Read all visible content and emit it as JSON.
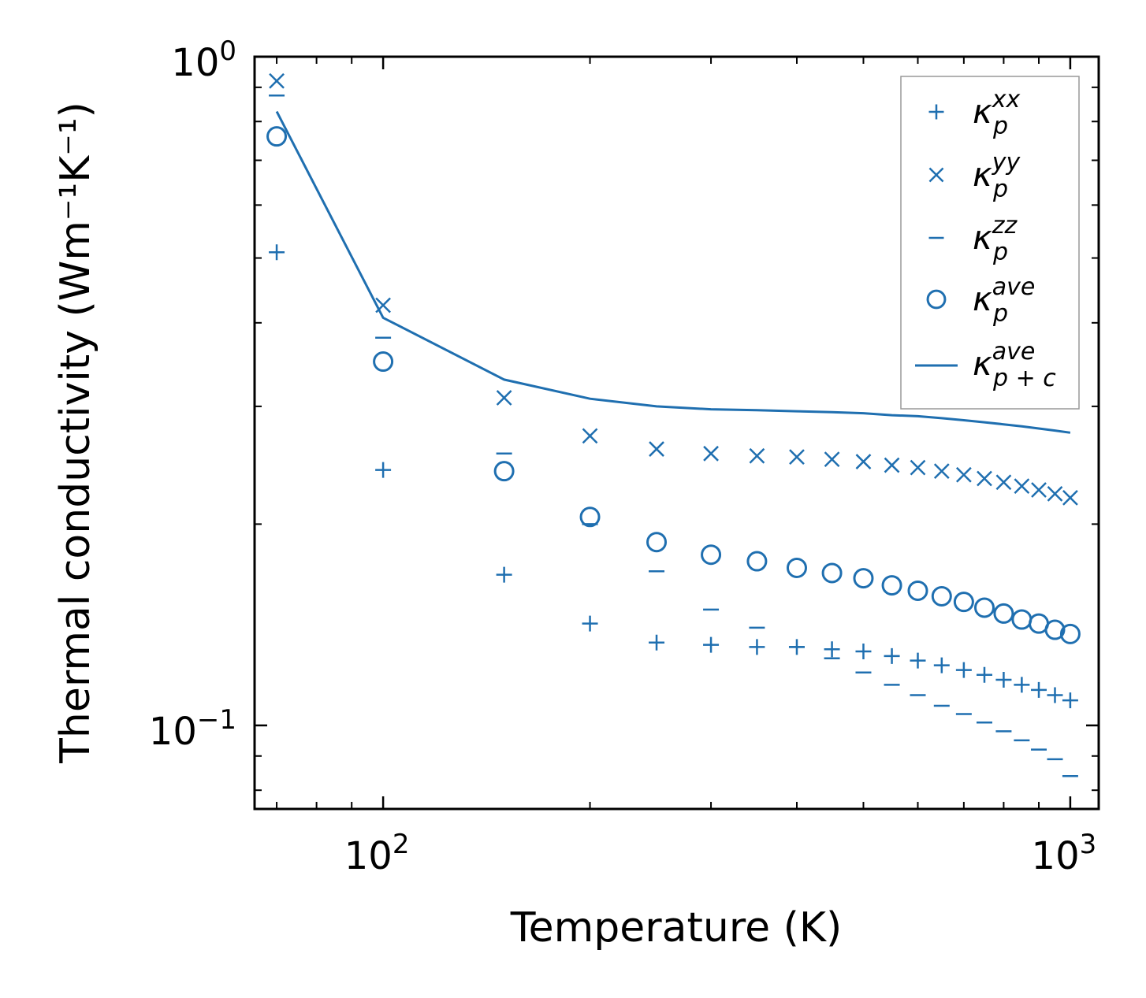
{
  "chart_data": {
    "type": "scatter",
    "xscale": "log",
    "yscale": "log",
    "xlim": [
      65,
      1100
    ],
    "ylim": [
      0.075,
      1.0
    ],
    "xlabel": "Temperature (K)",
    "ylabel": "Thermal conductivity (Wm⁻¹K⁻¹)",
    "x_ticks": [
      {
        "base": "10",
        "exp": "2"
      },
      {
        "base": "10",
        "exp": "3"
      }
    ],
    "y_ticks": [
      {
        "base": "10",
        "exp": "0"
      },
      {
        "base": "10",
        "exp": "−1"
      }
    ],
    "x": [
      70,
      100,
      150,
      200,
      250,
      300,
      350,
      400,
      450,
      500,
      550,
      600,
      650,
      700,
      750,
      800,
      850,
      900,
      950,
      1000
    ],
    "series": [
      {
        "name": "kappa_p_xx",
        "marker": "plus",
        "legend_base": "κ",
        "legend_sub": "p",
        "legend_sup": "xx",
        "values": [
          0.51,
          0.241,
          0.168,
          0.142,
          0.133,
          0.132,
          0.131,
          0.131,
          0.13,
          0.129,
          0.127,
          0.125,
          0.123,
          0.121,
          0.119,
          0.117,
          0.115,
          0.113,
          0.111,
          0.109
        ]
      },
      {
        "name": "kappa_p_yy",
        "marker": "x",
        "legend_base": "κ",
        "legend_sub": "p",
        "legend_sup": "yy",
        "values": [
          0.92,
          0.425,
          0.309,
          0.271,
          0.259,
          0.255,
          0.253,
          0.252,
          0.25,
          0.248,
          0.245,
          0.243,
          0.24,
          0.237,
          0.234,
          0.231,
          0.228,
          0.225,
          0.222,
          0.219
        ]
      },
      {
        "name": "kappa_p_zz",
        "marker": "dash",
        "legend_base": "κ",
        "legend_sub": "p",
        "legend_sup": "zz",
        "values": [
          0.875,
          0.38,
          0.255,
          0.2,
          0.17,
          0.149,
          0.14,
          0.131,
          0.126,
          0.12,
          0.115,
          0.111,
          0.107,
          0.104,
          0.101,
          0.098,
          0.095,
          0.092,
          0.089,
          0.084
        ]
      },
      {
        "name": "kappa_p_ave",
        "marker": "circle",
        "legend_base": "κ",
        "legend_sub": "p",
        "legend_sup": "ave",
        "values": [
          0.76,
          0.35,
          0.24,
          0.205,
          0.188,
          0.18,
          0.176,
          0.172,
          0.169,
          0.166,
          0.162,
          0.159,
          0.156,
          0.153,
          0.15,
          0.147,
          0.144,
          0.142,
          0.139,
          0.137
        ]
      },
      {
        "name": "kappa_pc_ave",
        "marker": "line",
        "legend_base": "κ",
        "legend_sub": "p + c",
        "legend_sup": "ave",
        "values": [
          0.828,
          0.407,
          0.329,
          0.308,
          0.3,
          0.297,
          0.296,
          0.295,
          0.294,
          0.293,
          0.291,
          0.29,
          0.288,
          0.286,
          0.284,
          0.282,
          0.28,
          0.278,
          0.276,
          0.274
        ]
      }
    ],
    "legend": "top-right",
    "color": "#1f6fb0"
  }
}
